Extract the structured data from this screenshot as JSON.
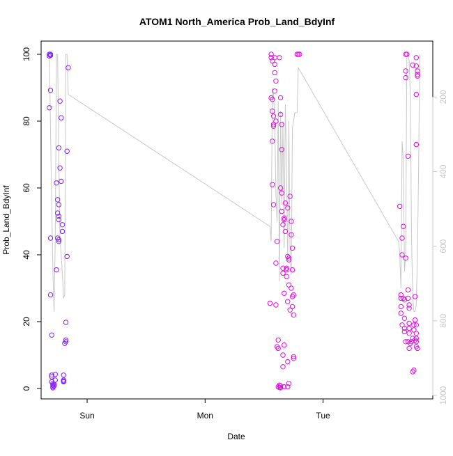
{
  "chart_data": {
    "type": "scatter",
    "title": "ATOM1 North_America Prob_Land_BdyInf",
    "xlabel": "Date",
    "ylabel": "Prob_Land_BdyInf",
    "ylim": [
      0,
      100
    ],
    "y_ticks": [
      "0",
      "20",
      "40",
      "60",
      "80",
      "100"
    ],
    "x_ticks": [
      {
        "label": "Sun",
        "t": 1.0
      },
      {
        "label": "Mon",
        "t": 2.0
      },
      {
        "label": "Tue",
        "t": 3.0
      }
    ],
    "x_range": [
      0.61,
      3.93
    ],
    "right_axis": {
      "ticks": [
        "200",
        "400",
        "600",
        "800",
        "1000"
      ],
      "range_top_to_bottom": [
        50,
        1000
      ],
      "color": "#c8c8c8"
    },
    "grid": false,
    "colors": {
      "early": "#7a1cff",
      "late": "#e00ee0",
      "line": "#c8c8c8"
    },
    "series": [
      {
        "points": [
          [
            0.68,
            100
          ],
          [
            0.68,
            99.5
          ],
          [
            0.69,
            100
          ],
          [
            0.69,
            99.7
          ],
          [
            0.69,
            89.2
          ],
          [
            0.68,
            84
          ],
          [
            0.69,
            45
          ],
          [
            0.69,
            28
          ],
          [
            0.7,
            16
          ],
          [
            0.7,
            4
          ],
          [
            0.7,
            3.5
          ],
          [
            0.7,
            2
          ],
          [
            0.71,
            1.5
          ],
          [
            0.71,
            1
          ],
          [
            0.71,
            0.5
          ],
          [
            0.71,
            0.2
          ],
          [
            0.72,
            0.8
          ],
          [
            0.72,
            1.2
          ],
          [
            0.73,
            2.5
          ],
          [
            0.73,
            4.2
          ],
          [
            0.74,
            61.5
          ],
          [
            0.75,
            56.5
          ],
          [
            0.75,
            52.5
          ],
          [
            0.76,
            51.5
          ],
          [
            0.76,
            50.5
          ],
          [
            0.75,
            45
          ],
          [
            0.76,
            44.5
          ],
          [
            0.76,
            44
          ],
          [
            0.76,
            72
          ],
          [
            0.76,
            55
          ],
          [
            0.77,
            86
          ],
          [
            0.77,
            66
          ],
          [
            0.78,
            62
          ],
          [
            0.78,
            81
          ],
          [
            0.79,
            49
          ],
          [
            0.79,
            47
          ],
          [
            0.74,
            35.5
          ],
          [
            0.8,
            4
          ],
          [
            0.8,
            2.5
          ],
          [
            0.8,
            2
          ],
          [
            0.8,
            2.2
          ],
          [
            0.81,
            13.5
          ],
          [
            0.82,
            14.5
          ],
          [
            0.82,
            14
          ],
          [
            0.82,
            19.8
          ],
          [
            0.83,
            39.5
          ],
          [
            0.83,
            71
          ],
          [
            0.84,
            96
          ]
        ]
      },
      {
        "points": [
          [
            2.55,
            25.5
          ],
          [
            2.56,
            100
          ],
          [
            2.56,
            99
          ],
          [
            2.57,
            98
          ],
          [
            2.56,
            87
          ],
          [
            2.57,
            86.5
          ],
          [
            2.57,
            83
          ],
          [
            2.58,
            81.5
          ],
          [
            2.58,
            79
          ],
          [
            2.58,
            78.5
          ],
          [
            2.57,
            74
          ],
          [
            2.57,
            61
          ],
          [
            2.58,
            55
          ],
          [
            2.59,
            99
          ],
          [
            2.59,
            97
          ],
          [
            2.59,
            94.5
          ],
          [
            2.6,
            92
          ],
          [
            2.59,
            89
          ],
          [
            2.6,
            80
          ],
          [
            2.61,
            44
          ],
          [
            2.6,
            37.5
          ],
          [
            2.6,
            25
          ],
          [
            2.61,
            12.5
          ],
          [
            2.62,
            14.5
          ],
          [
            2.62,
            12
          ],
          [
            2.63,
            1
          ],
          [
            2.62,
            0.5
          ],
          [
            2.63,
            0.3
          ],
          [
            2.64,
            0.8
          ],
          [
            2.64,
            0.2
          ],
          [
            2.63,
            99
          ],
          [
            2.64,
            87
          ],
          [
            2.64,
            82
          ],
          [
            2.65,
            79
          ],
          [
            2.65,
            71.5
          ],
          [
            2.64,
            60
          ],
          [
            2.65,
            58.5
          ],
          [
            2.65,
            53
          ],
          [
            2.66,
            49
          ],
          [
            2.66,
            36
          ],
          [
            2.66,
            34.5
          ],
          [
            2.67,
            50.5
          ],
          [
            2.67,
            51
          ],
          [
            2.67,
            28.5
          ],
          [
            2.66,
            10
          ],
          [
            2.67,
            13
          ],
          [
            2.66,
            6.5
          ],
          [
            2.67,
            0.5
          ],
          [
            2.68,
            55.5
          ],
          [
            2.68,
            47
          ],
          [
            2.69,
            35.5
          ],
          [
            2.69,
            36
          ],
          [
            2.69,
            33.5
          ],
          [
            2.7,
            54
          ],
          [
            2.7,
            39.5
          ],
          [
            2.7,
            26
          ],
          [
            2.7,
            8
          ],
          [
            2.71,
            38.5
          ],
          [
            2.71,
            39
          ],
          [
            2.71,
            31
          ],
          [
            2.72,
            23.5
          ],
          [
            2.72,
            57.5
          ],
          [
            2.73,
            30
          ],
          [
            2.73,
            50
          ],
          [
            2.73,
            46
          ],
          [
            2.74,
            42
          ],
          [
            2.74,
            35.5
          ],
          [
            2.74,
            27.5
          ],
          [
            2.74,
            24.5
          ],
          [
            2.75,
            28
          ],
          [
            2.75,
            22
          ],
          [
            2.75,
            9
          ],
          [
            2.75,
            9.5
          ],
          [
            2.71,
            1.5
          ],
          [
            2.7,
            0.5
          ],
          [
            2.78,
            100
          ],
          [
            2.79,
            100
          ],
          [
            2.8,
            100
          ]
        ]
      },
      {
        "points": [
          [
            3.65,
            54.5
          ],
          [
            3.66,
            28
          ],
          [
            3.66,
            27
          ],
          [
            3.66,
            24.5
          ],
          [
            3.66,
            22.5
          ],
          [
            3.67,
            45
          ],
          [
            3.67,
            40
          ],
          [
            3.67,
            19
          ],
          [
            3.68,
            48.5
          ],
          [
            3.68,
            27
          ],
          [
            3.69,
            26.5
          ],
          [
            3.69,
            21
          ],
          [
            3.69,
            18
          ],
          [
            3.69,
            17
          ],
          [
            3.7,
            14
          ],
          [
            3.7,
            39
          ],
          [
            3.7,
            100
          ],
          [
            3.71,
            100
          ],
          [
            3.7,
            95
          ],
          [
            3.7,
            93
          ],
          [
            3.72,
            69.5
          ],
          [
            3.72,
            29.5
          ],
          [
            3.72,
            27
          ],
          [
            3.73,
            25
          ],
          [
            3.73,
            24
          ],
          [
            3.73,
            19.5
          ],
          [
            3.73,
            18
          ],
          [
            3.73,
            16.5
          ],
          [
            3.72,
            14
          ],
          [
            3.73,
            12
          ],
          [
            3.74,
            13.5
          ],
          [
            3.75,
            14
          ],
          [
            3.76,
            15
          ],
          [
            3.76,
            5
          ],
          [
            3.77,
            5.5
          ],
          [
            3.77,
            17.5
          ],
          [
            3.77,
            19
          ],
          [
            3.78,
            20.5
          ],
          [
            3.78,
            27.5
          ],
          [
            3.79,
            16.5
          ],
          [
            3.79,
            19
          ],
          [
            3.79,
            15
          ],
          [
            3.79,
            14
          ],
          [
            3.79,
            12.5
          ],
          [
            3.8,
            12
          ],
          [
            3.79,
            99
          ],
          [
            3.79,
            96.5
          ],
          [
            3.8,
            95
          ],
          [
            3.8,
            94
          ],
          [
            3.8,
            93.5
          ],
          [
            3.79,
            88
          ],
          [
            3.79,
            73
          ],
          [
            3.76,
            96.8
          ],
          [
            3.78,
            14.5
          ]
        ]
      }
    ],
    "line": [
      [
        0.66,
        100
      ],
      [
        0.68,
        100
      ],
      [
        0.7,
        55
      ],
      [
        0.71,
        35
      ],
      [
        0.72,
        23
      ],
      [
        0.73,
        45
      ],
      [
        0.74,
        100
      ],
      [
        0.75,
        100
      ],
      [
        0.76,
        68
      ],
      [
        0.77,
        45
      ],
      [
        0.78,
        40
      ],
      [
        0.79,
        34
      ],
      [
        0.8,
        27
      ],
      [
        0.81,
        28
      ],
      [
        0.82,
        100
      ],
      [
        0.83,
        100
      ],
      [
        0.84,
        88
      ],
      [
        2.55,
        48.5
      ],
      [
        2.56,
        44
      ],
      [
        2.57,
        90
      ],
      [
        2.58,
        88
      ],
      [
        2.59,
        80
      ],
      [
        2.6,
        58
      ],
      [
        2.61,
        50
      ],
      [
        2.62,
        86
      ],
      [
        2.63,
        32
      ],
      [
        2.64,
        83
      ],
      [
        2.65,
        55
      ],
      [
        2.66,
        80
      ],
      [
        2.67,
        42
      ],
      [
        2.68,
        85
      ],
      [
        2.69,
        68
      ],
      [
        2.7,
        38
      ],
      [
        2.71,
        80
      ],
      [
        2.72,
        40
      ],
      [
        2.73,
        34
      ],
      [
        2.74,
        78
      ],
      [
        2.75,
        80
      ],
      [
        2.76,
        82.5
      ],
      [
        2.77,
        82.5
      ],
      [
        2.78,
        82.5
      ],
      [
        2.79,
        96
      ],
      [
        3.64,
        44
      ],
      [
        3.65,
        40
      ],
      [
        3.66,
        30
      ],
      [
        3.67,
        74
      ],
      [
        3.68,
        68
      ],
      [
        3.69,
        35
      ],
      [
        3.7,
        40
      ],
      [
        3.71,
        100
      ],
      [
        3.72,
        100
      ],
      [
        3.73,
        98
      ],
      [
        3.74,
        88
      ],
      [
        3.75,
        45
      ],
      [
        3.76,
        28
      ],
      [
        3.77,
        23
      ],
      [
        3.78,
        23
      ],
      [
        3.79,
        25
      ],
      [
        3.8,
        40
      ],
      [
        3.81,
        67
      ],
      [
        3.82,
        100
      ]
    ]
  }
}
